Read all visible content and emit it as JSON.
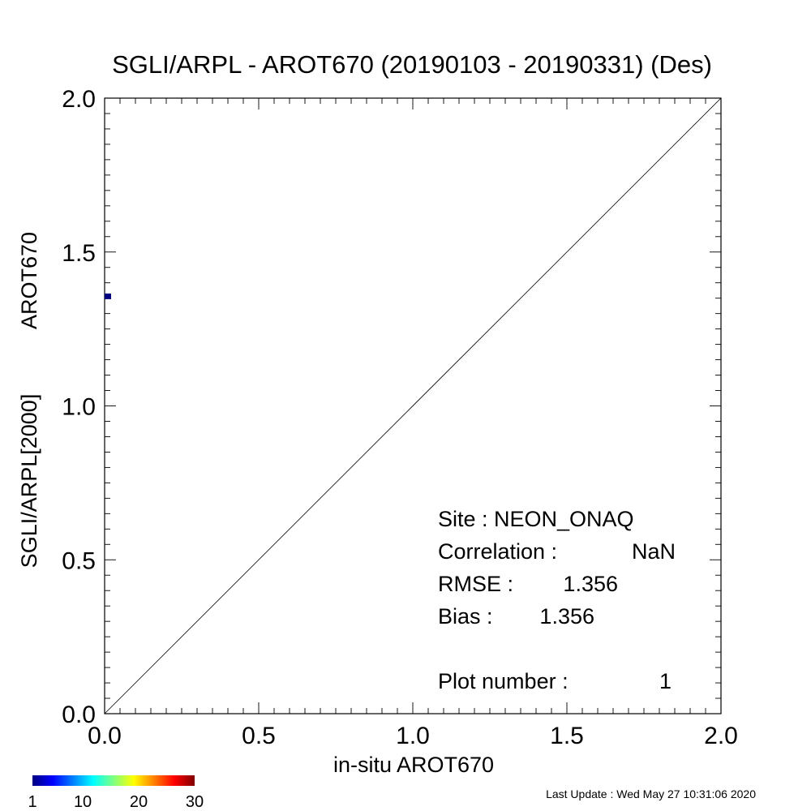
{
  "chart_data": {
    "type": "scatter",
    "title": "SGLI/ARPL - AROT670 (20190103 - 20190331) (Des)",
    "xlabel": "in-situ AROT670",
    "ylabel_left": "SGLI/ARPL[2000]",
    "ylabel_right": "AROT670",
    "xlim": [
      0.0,
      2.0
    ],
    "ylim": [
      0.0,
      2.0
    ],
    "xticks": [
      "0.0",
      "0.5",
      "1.0",
      "1.5",
      "2.0"
    ],
    "yticks": [
      "0.0",
      "0.5",
      "1.0",
      "1.5",
      "2.0"
    ],
    "one_to_one_line": true,
    "points": [
      {
        "x": 0.0,
        "y": 1.356,
        "count": 1,
        "color": "#000080"
      }
    ],
    "stats": {
      "site": "Site : NEON_ONAQ",
      "correlation_label": "Correlation :",
      "correlation_value": "NaN",
      "rmse_label": "RMSE :",
      "rmse_value": "1.356",
      "bias_label": "Bias :",
      "bias_value": "1.356",
      "plot_number_label": "Plot number :",
      "plot_number_value": "1"
    },
    "colorbar": {
      "ticks": [
        "1",
        "10",
        "20",
        "30"
      ],
      "tick_values": [
        1,
        10,
        20,
        30
      ],
      "range": [
        1,
        30
      ],
      "colors": [
        "#000080",
        "#0000ff",
        "#00ffff",
        "#ffff00",
        "#ff0000",
        "#800000"
      ]
    },
    "last_update": "Last Update : Wed May 27 10:31:06 2020"
  }
}
